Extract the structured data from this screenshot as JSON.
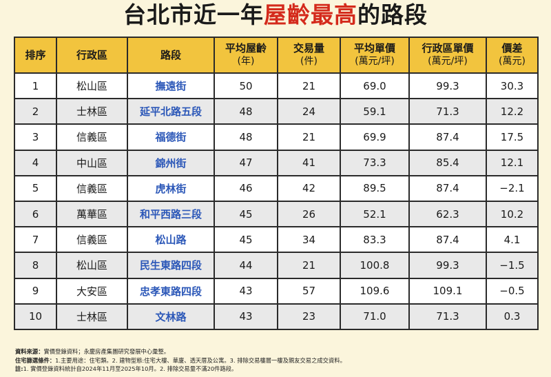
{
  "title": {
    "part1": "台北市近一年",
    "highlight": "屋齡最高",
    "part2": "的路段"
  },
  "colors": {
    "header_bg": "#f2c43e",
    "highlight": "#d42a1c",
    "road_text": "#2b57b8",
    "background": "#fbf5dc"
  },
  "table": {
    "headers": [
      {
        "main": "排序",
        "sub": ""
      },
      {
        "main": "行政區",
        "sub": ""
      },
      {
        "main": "路段",
        "sub": ""
      },
      {
        "main": "平均屋齡",
        "sub": "(年)"
      },
      {
        "main": "交易量",
        "sub": "(件)"
      },
      {
        "main": "平均單價",
        "sub": "(萬元/坪)"
      },
      {
        "main": "行政區單價",
        "sub": "(萬元/坪)"
      },
      {
        "main": "價差",
        "sub": "(萬元)"
      }
    ],
    "rows": [
      {
        "rank": "1",
        "district": "松山區",
        "road": "撫遠街",
        "age": "50",
        "volume": "21",
        "avg_price": "69.0",
        "district_price": "99.3",
        "diff": "30.3"
      },
      {
        "rank": "2",
        "district": "士林區",
        "road": "延平北路五段",
        "age": "48",
        "volume": "24",
        "avg_price": "59.1",
        "district_price": "71.3",
        "diff": "12.2"
      },
      {
        "rank": "3",
        "district": "信義區",
        "road": "福德街",
        "age": "48",
        "volume": "21",
        "avg_price": "69.9",
        "district_price": "87.4",
        "diff": "17.5"
      },
      {
        "rank": "4",
        "district": "中山區",
        "road": "錦州街",
        "age": "47",
        "volume": "41",
        "avg_price": "73.3",
        "district_price": "85.4",
        "diff": "12.1"
      },
      {
        "rank": "5",
        "district": "信義區",
        "road": "虎林街",
        "age": "46",
        "volume": "42",
        "avg_price": "89.5",
        "district_price": "87.4",
        "diff": "−2.1"
      },
      {
        "rank": "6",
        "district": "萬華區",
        "road": "和平西路三段",
        "age": "45",
        "volume": "26",
        "avg_price": "52.1",
        "district_price": "62.3",
        "diff": "10.2"
      },
      {
        "rank": "7",
        "district": "信義區",
        "road": "松山路",
        "age": "45",
        "volume": "34",
        "avg_price": "83.3",
        "district_price": "87.4",
        "diff": "4.1"
      },
      {
        "rank": "8",
        "district": "松山區",
        "road": "民生東路四段",
        "age": "44",
        "volume": "21",
        "avg_price": "100.8",
        "district_price": "99.3",
        "diff": "−1.5"
      },
      {
        "rank": "9",
        "district": "大安區",
        "road": "忠孝東路四段",
        "age": "43",
        "volume": "57",
        "avg_price": "109.6",
        "district_price": "109.1",
        "diff": "−0.5"
      },
      {
        "rank": "10",
        "district": "士林區",
        "road": "文林路",
        "age": "43",
        "volume": "23",
        "avg_price": "71.0",
        "district_price": "71.3",
        "diff": "0.3"
      }
    ]
  },
  "notes": {
    "source_label": "資料來源：",
    "source_text": "實價登錄資料；永慶房產集團研究發展中心彙整。",
    "filter_label": "住宅篩選條件：",
    "filter_text": "1.主要用途：住宅類。2. 建物型態:住宅大樓、華廈、透天厝及公寓。3. 排除交易樓層一樓及親友交易之成交資料。",
    "note_label": "註:",
    "note_text": "1. 實價登錄資料統計自2024年11月至2025年10月。2. 排除交易量不滿20件路段。"
  }
}
